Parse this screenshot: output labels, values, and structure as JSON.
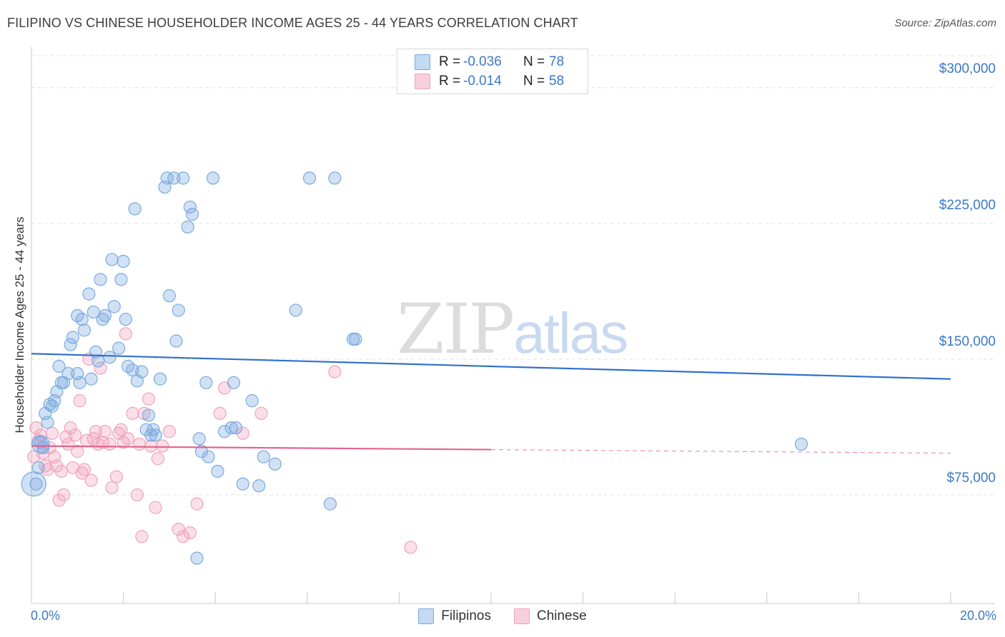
{
  "title": "FILIPINO VS CHINESE HOUSEHOLDER INCOME AGES 25 - 44 YEARS CORRELATION CHART",
  "source": "Source: ZipAtlas.com",
  "watermark": {
    "zip": "ZIP",
    "atlas": "atlas"
  },
  "legend": {
    "filipinos": {
      "r_label": "R =",
      "r_value": "-0.036",
      "n_label": "N =",
      "n_value": "78"
    },
    "chinese": {
      "r_label": "R =",
      "r_value": "-0.014",
      "n_label": "N =",
      "n_value": "58"
    }
  },
  "bottom_legend": {
    "filipinos": "Filipinos",
    "chinese": "Chinese"
  },
  "colors": {
    "filipinos": "#7aaae0",
    "filipinos_line": "#2f6fcd",
    "chinese": "#f0a3bd",
    "chinese_line": "#e2648d"
  },
  "chart_data": {
    "type": "scatter",
    "title": "FILIPINO VS CHINESE HOUSEHOLDER INCOME AGES 25 - 44 YEARS CORRELATION CHART",
    "xlabel": "",
    "ylabel": "Householder Income Ages 25 - 44 years",
    "xlim": [
      0,
      20
    ],
    "ylim": [
      15000,
      320000
    ],
    "x_tick_labels": [
      "0.0%",
      "20.0%"
    ],
    "y_ticks": [
      75000,
      150000,
      225000,
      300000
    ],
    "y_tick_labels": [
      "$75,000",
      "$150,000",
      "$225,000",
      "$300,000"
    ],
    "series": [
      {
        "name": "Filipinos",
        "trend": {
          "x": [
            0,
            20
          ],
          "y": [
            153000,
            139000
          ]
        },
        "points": [
          [
            0.1,
            81000
          ],
          [
            0.15,
            90000
          ],
          [
            0.2,
            104000
          ],
          [
            0.25,
            101000
          ],
          [
            0.3,
            120000
          ],
          [
            0.35,
            115000
          ],
          [
            0.4,
            125000
          ],
          [
            0.45,
            124000
          ],
          [
            0.5,
            127000
          ],
          [
            0.55,
            132000
          ],
          [
            0.6,
            146000
          ],
          [
            0.65,
            137000
          ],
          [
            0.7,
            137000
          ],
          [
            0.8,
            142000
          ],
          [
            0.85,
            158000
          ],
          [
            0.9,
            162000
          ],
          [
            1.0,
            142000
          ],
          [
            1.0,
            174000
          ],
          [
            1.05,
            137000
          ],
          [
            1.1,
            172000
          ],
          [
            1.15,
            166000
          ],
          [
            1.25,
            186000
          ],
          [
            1.3,
            139000
          ],
          [
            1.35,
            176000
          ],
          [
            1.4,
            154000
          ],
          [
            1.45,
            149000
          ],
          [
            1.5,
            194000
          ],
          [
            1.55,
            172000
          ],
          [
            1.6,
            174000
          ],
          [
            1.7,
            151000
          ],
          [
            1.75,
            205000
          ],
          [
            1.8,
            179000
          ],
          [
            1.9,
            156000
          ],
          [
            1.95,
            194000
          ],
          [
            2.0,
            204000
          ],
          [
            2.05,
            172000
          ],
          [
            2.1,
            146000
          ],
          [
            2.2,
            144000
          ],
          [
            2.25,
            233000
          ],
          [
            2.3,
            138000
          ],
          [
            2.4,
            143000
          ],
          [
            2.5,
            111000
          ],
          [
            2.55,
            119000
          ],
          [
            2.6,
            108000
          ],
          [
            2.65,
            111000
          ],
          [
            2.7,
            108000
          ],
          [
            2.8,
            139000
          ],
          [
            2.9,
            245000
          ],
          [
            2.95,
            250000
          ],
          [
            3.0,
            185000
          ],
          [
            3.1,
            250000
          ],
          [
            3.15,
            160000
          ],
          [
            3.2,
            177000
          ],
          [
            3.3,
            250000
          ],
          [
            3.4,
            223000
          ],
          [
            3.45,
            234000
          ],
          [
            3.5,
            230000
          ],
          [
            3.6,
            40000
          ],
          [
            3.65,
            106000
          ],
          [
            3.7,
            99000
          ],
          [
            3.8,
            137000
          ],
          [
            3.85,
            96000
          ],
          [
            3.95,
            250000
          ],
          [
            4.05,
            88000
          ],
          [
            4.2,
            110000
          ],
          [
            4.35,
            112000
          ],
          [
            4.4,
            137000
          ],
          [
            4.45,
            112000
          ],
          [
            4.6,
            81000
          ],
          [
            4.8,
            127000
          ],
          [
            4.95,
            80000
          ],
          [
            5.05,
            96000
          ],
          [
            5.3,
            92000
          ],
          [
            5.75,
            177000
          ],
          [
            6.05,
            250000
          ],
          [
            6.5,
            70000
          ],
          [
            6.6,
            250000
          ],
          [
            7.0,
            161000
          ],
          [
            7.05,
            161000
          ],
          [
            16.75,
            103000
          ]
        ]
      },
      {
        "name": "Chinese",
        "trend": {
          "x": [
            0,
            10
          ],
          "y": [
            102000,
            100000
          ]
        },
        "trend_dashed": {
          "x": [
            10,
            20
          ],
          "y": [
            100000,
            98000
          ]
        },
        "points": [
          [
            0.05,
            96000
          ],
          [
            0.1,
            112000
          ],
          [
            0.15,
            105000
          ],
          [
            0.2,
            108000
          ],
          [
            0.25,
            98000
          ],
          [
            0.3,
            91000
          ],
          [
            0.35,
            89000
          ],
          [
            0.4,
            101000
          ],
          [
            0.45,
            109000
          ],
          [
            0.5,
            96000
          ],
          [
            0.55,
            91000
          ],
          [
            0.6,
            72000
          ],
          [
            0.65,
            88000
          ],
          [
            0.7,
            75000
          ],
          [
            0.75,
            107000
          ],
          [
            0.8,
            103000
          ],
          [
            0.85,
            112000
          ],
          [
            0.9,
            90000
          ],
          [
            0.95,
            108000
          ],
          [
            1.0,
            99000
          ],
          [
            1.05,
            127000
          ],
          [
            1.1,
            87000
          ],
          [
            1.15,
            89000
          ],
          [
            1.2,
            105000
          ],
          [
            1.25,
            150000
          ],
          [
            1.3,
            83000
          ],
          [
            1.35,
            106000
          ],
          [
            1.4,
            110000
          ],
          [
            1.45,
            103000
          ],
          [
            1.5,
            145000
          ],
          [
            1.55,
            104000
          ],
          [
            1.6,
            110000
          ],
          [
            1.7,
            103000
          ],
          [
            1.75,
            79000
          ],
          [
            1.85,
            85000
          ],
          [
            1.9,
            109000
          ],
          [
            1.95,
            111000
          ],
          [
            2.0,
            104000
          ],
          [
            2.05,
            164000
          ],
          [
            2.1,
            106000
          ],
          [
            2.2,
            120000
          ],
          [
            2.3,
            75000
          ],
          [
            2.35,
            103000
          ],
          [
            2.4,
            52000
          ],
          [
            2.45,
            120000
          ],
          [
            2.55,
            128000
          ],
          [
            2.6,
            102000
          ],
          [
            2.7,
            68000
          ],
          [
            2.75,
            95000
          ],
          [
            2.85,
            102000
          ],
          [
            3.0,
            110000
          ],
          [
            3.2,
            56000
          ],
          [
            3.3,
            52000
          ],
          [
            3.45,
            54000
          ],
          [
            3.6,
            70000
          ],
          [
            4.1,
            120000
          ],
          [
            4.2,
            134000
          ],
          [
            4.6,
            109000
          ],
          [
            5.0,
            120000
          ],
          [
            6.6,
            143000
          ],
          [
            8.25,
            46000
          ]
        ]
      }
    ]
  }
}
